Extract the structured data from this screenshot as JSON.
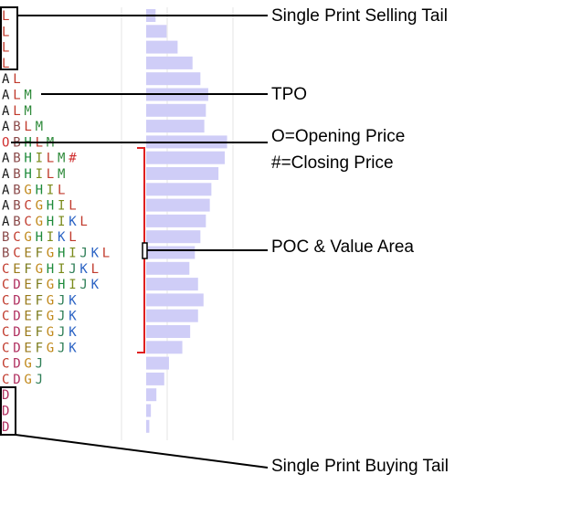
{
  "letter_colors": {
    "A": "#1a1a1a",
    "B": "#8b4a4a",
    "C": "#c0392b",
    "D": "#b03060",
    "E": "#9a7a1a",
    "F": "#7a7a1a",
    "G": "#c0881a",
    "H": "#1d8a3a",
    "I": "#7a8a1a",
    "J": "#2e7e56",
    "K": "#2b63c4",
    "L": "#c0392b",
    "M": "#2e8a3a",
    "O": "#d03030",
    "#": "#d03030"
  },
  "tpo_rows": [
    "L",
    "L",
    "L",
    "L",
    "AL",
    "ALM",
    "ALM",
    "ABLM",
    "OBHLM",
    "ABHILM#",
    "ABHILM",
    "ABGHIL",
    "ABCGHIL",
    "ABCGHIKL",
    "BCGHIKL",
    "BCEFGHIJKL",
    "CEFGHIJKL",
    "CDEFGHIJK",
    "CDEFGJK",
    "CDEFGJK",
    "CDEFGJK",
    "CDEFGJK",
    "CDGJ",
    "CDGJ",
    "D",
    "D",
    "D"
  ],
  "volume_profile": [
    0.12,
    0.26,
    0.4,
    0.59,
    0.69,
    0.79,
    0.76,
    0.74,
    1.03,
    1.0,
    0.92,
    0.83,
    0.81,
    0.76,
    0.69,
    0.62,
    0.55,
    0.66,
    0.73,
    0.66,
    0.56,
    0.46,
    0.29,
    0.23,
    0.13,
    0.06,
    0.04
  ],
  "annotations": {
    "selling_tail": "Single Print Selling Tail",
    "tpo": "TPO",
    "opening_price": "O=Opening Price",
    "closing_price": "#=Closing Price",
    "poc_value_area": "POC & Value Area",
    "buying_tail": "Single Print Buying Tail"
  }
}
